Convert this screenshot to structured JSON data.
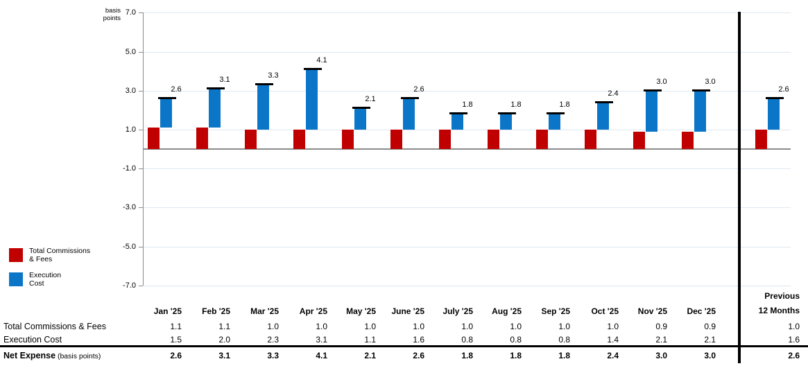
{
  "chart": {
    "y_axis_title_lines": [
      "basis",
      "points"
    ],
    "y_tick_labels": [
      "7.0",
      "5.0",
      "3.0",
      "1.0",
      "-1.0",
      "-3.0",
      "-5.0",
      "-7.0"
    ],
    "legend": [
      {
        "lines": [
          "Total Commissions",
          "& Fees"
        ],
        "color": "#C00000"
      },
      {
        "lines": [
          "Execution",
          "Cost"
        ],
        "color": "#0B76C8"
      }
    ],
    "colors": {
      "red": "#C00000",
      "blue": "#0B76C8",
      "grid": "#DDE7F2",
      "axis": "#8A8A8A",
      "separator": "#000000"
    }
  },
  "chart_data": {
    "type": "bar",
    "title": "",
    "xlabel": "",
    "ylabel": "basis points",
    "ylim": [
      -7.0,
      7.0
    ],
    "ytick_step": 2.0,
    "grid": true,
    "legend_position": "left-bottom",
    "categories": [
      "Jan '25",
      "Feb '25",
      "Mar '25",
      "Apr '25",
      "May '25",
      "June '25",
      "July '25",
      "Aug '25",
      "Sep '25",
      "Oct '25",
      "Nov '25",
      "Dec '25",
      "Previous 12 Months"
    ],
    "series": [
      {
        "name": "Total Commissions & Fees",
        "color": "#C00000",
        "values": [
          1.1,
          1.1,
          1.0,
          1.0,
          1.0,
          1.0,
          1.0,
          1.0,
          1.0,
          1.0,
          0.9,
          0.9,
          1.0
        ]
      },
      {
        "name": "Execution Cost",
        "color": "#0B76C8",
        "values": [
          1.5,
          2.0,
          2.3,
          3.1,
          1.1,
          1.6,
          0.8,
          0.8,
          0.8,
          1.4,
          2.1,
          2.1,
          1.6
        ]
      }
    ],
    "totals_name": "Net Expense (basis points)",
    "totals": [
      2.6,
      3.1,
      3.3,
      4.1,
      2.1,
      2.6,
      1.8,
      1.8,
      1.8,
      2.4,
      3.0,
      3.0,
      2.6
    ],
    "bar_labels": [
      "2.6",
      "3.1",
      "3.3",
      "4.1",
      "2.1",
      "2.6",
      "1.8",
      "1.8",
      "1.8",
      "2.4",
      "3.0",
      "3.0",
      "2.6"
    ]
  },
  "table": {
    "columns": [
      "Jan '25",
      "Feb '25",
      "Mar '25",
      "Apr '25",
      "May '25",
      "June '25",
      "July '25",
      "Aug '25",
      "Sep '25",
      "Oct '25",
      "Nov '25",
      "Dec '25"
    ],
    "prev_column_lines": [
      "Previous",
      "12 Months"
    ],
    "rows": [
      {
        "label": "Total Commissions & Fees",
        "label_suffix": "",
        "bold": false,
        "values": [
          "1.1",
          "1.1",
          "1.0",
          "1.0",
          "1.0",
          "1.0",
          "1.0",
          "1.0",
          "1.0",
          "1.0",
          "0.9",
          "0.9"
        ],
        "prev": "1.0"
      },
      {
        "label": "Execution Cost",
        "label_suffix": "",
        "bold": false,
        "values": [
          "1.5",
          "2.0",
          "2.3",
          "3.1",
          "1.1",
          "1.6",
          "0.8",
          "0.8",
          "0.8",
          "1.4",
          "2.1",
          "2.1"
        ],
        "prev": "1.6"
      },
      {
        "label": "Net Expense",
        "label_suffix": " (basis points)",
        "bold": true,
        "values": [
          "2.6",
          "3.1",
          "3.3",
          "4.1",
          "2.1",
          "2.6",
          "1.8",
          "1.8",
          "1.8",
          "2.4",
          "3.0",
          "3.0"
        ],
        "prev": "2.6"
      }
    ]
  }
}
